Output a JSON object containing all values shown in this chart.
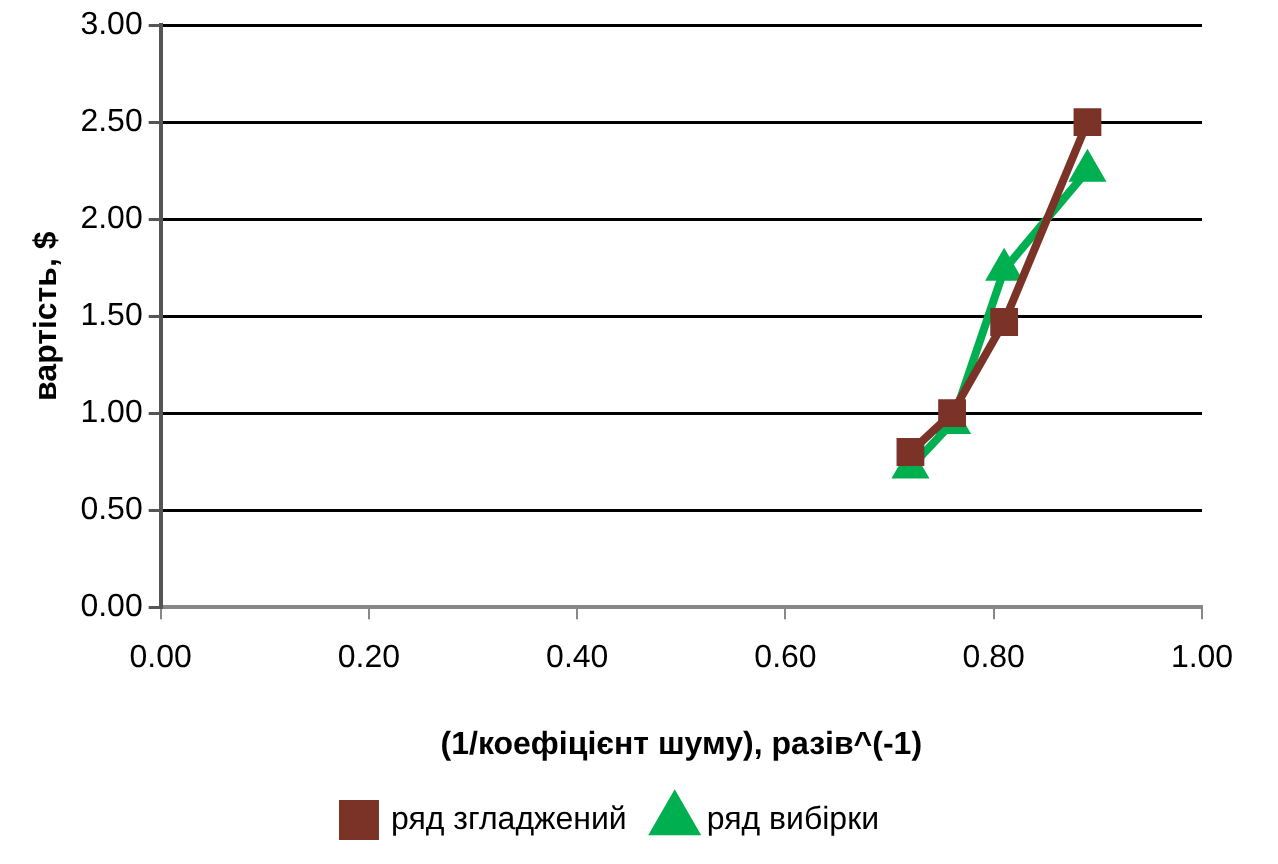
{
  "chart_data": {
    "type": "line",
    "xlabel": "(1/коефіцієнт шуму), разів^(-1)",
    "ylabel": "вартість, $",
    "xlim": [
      0,
      1
    ],
    "xticks": [
      {
        "value": 0,
        "label": "0.00"
      },
      {
        "value": 0.2,
        "label": "0.20"
      },
      {
        "value": 0.4,
        "label": "0.40"
      },
      {
        "value": 0.6,
        "label": "0.60"
      },
      {
        "value": 0.8,
        "label": "0.80"
      },
      {
        "value": 1,
        "label": "1.00"
      }
    ],
    "ylim": [
      0,
      3
    ],
    "yticks": [
      {
        "value": 0,
        "label": "0.00"
      },
      {
        "value": 0.5,
        "label": "0.50"
      },
      {
        "value": 1,
        "label": "1.00"
      },
      {
        "value": 1.5,
        "label": "1.50"
      },
      {
        "value": 2,
        "label": "2.00"
      },
      {
        "value": 2.5,
        "label": "2.50"
      },
      {
        "value": 3,
        "label": "3.00"
      }
    ],
    "grid": "y",
    "legend": "bottom",
    "line_style": "solid",
    "series": [
      {
        "name": "ряд вибірки",
        "color": "#00b050",
        "marker": "triangle",
        "x": [
          0.72,
          0.76,
          0.81,
          0.89
        ],
        "values": [
          0.72,
          0.95,
          1.74,
          2.25
        ]
      },
      {
        "name": "ряд згладжений",
        "color": "#7b3328",
        "marker": "square",
        "x": [
          0.72,
          0.76,
          0.81,
          0.89
        ],
        "values": [
          0.8,
          1.0,
          1.47,
          2.5
        ]
      }
    ]
  }
}
